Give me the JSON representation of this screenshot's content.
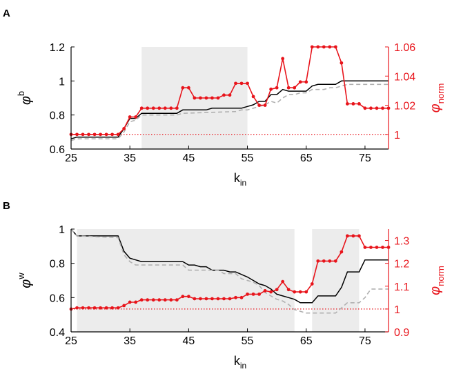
{
  "chart_data": [
    {
      "panel": "A",
      "type": "line",
      "xlabel": "k",
      "xlabel_sub": "in",
      "ylabel_left": "φ",
      "ylabel_left_sup": "b",
      "ylabel_right": "φ",
      "ylabel_right_sub": "norm",
      "xlim": [
        25,
        79
      ],
      "xticks": [
        25,
        35,
        45,
        55,
        65,
        75
      ],
      "ylim_left": [
        0.6,
        1.2
      ],
      "yticks_left": [
        0.6,
        0.8,
        1,
        1.2
      ],
      "yticklabels_left": [
        "0.6",
        "0.8",
        "1",
        "1.2"
      ],
      "ylim_right": [
        0.99,
        1.06
      ],
      "yticks_right": [
        1,
        1.02,
        1.04,
        1.06
      ],
      "yticklabels_right": [
        "1",
        "1.02",
        "1.04",
        "1.06"
      ],
      "shaded_ranges": [
        [
          37,
          55
        ]
      ],
      "reference_line_right": 1,
      "series": [
        {
          "style": "solid-black",
          "axis": "left",
          "x": [
            25,
            26,
            33,
            34,
            35,
            36,
            37,
            38,
            39,
            40,
            41,
            42,
            43,
            44,
            45,
            46,
            47,
            48,
            49,
            50,
            51,
            52,
            53,
            54,
            55,
            56,
            57,
            58,
            59,
            60,
            61,
            62,
            63,
            64,
            65,
            66,
            67,
            68,
            69,
            70,
            71,
            79
          ],
          "values": [
            0.66,
            0.67,
            0.67,
            0.72,
            0.78,
            0.78,
            0.81,
            0.81,
            0.81,
            0.81,
            0.81,
            0.81,
            0.81,
            0.83,
            0.83,
            0.83,
            0.83,
            0.83,
            0.84,
            0.84,
            0.84,
            0.84,
            0.84,
            0.84,
            0.85,
            0.86,
            0.88,
            0.88,
            0.92,
            0.92,
            0.95,
            0.94,
            0.94,
            0.94,
            0.94,
            0.97,
            0.98,
            0.98,
            0.98,
            0.98,
            1.0,
            1.0
          ]
        },
        {
          "style": "dashed-gray",
          "axis": "left",
          "x": [
            25,
            26,
            33,
            34,
            35,
            36,
            37,
            43,
            44,
            53,
            54,
            55,
            56,
            57,
            58,
            59,
            60,
            61,
            62,
            63,
            64,
            65,
            66,
            67,
            68,
            69,
            70,
            71,
            72,
            79
          ],
          "values": [
            0.65,
            0.66,
            0.66,
            0.7,
            0.76,
            0.77,
            0.8,
            0.8,
            0.81,
            0.82,
            0.83,
            0.83,
            0.84,
            0.85,
            0.86,
            0.88,
            0.87,
            0.9,
            0.92,
            0.92,
            0.93,
            0.93,
            0.95,
            0.95,
            0.95,
            0.96,
            0.96,
            0.97,
            0.98,
            0.98
          ]
        },
        {
          "style": "red-markers",
          "axis": "right",
          "x": [
            25,
            26,
            27,
            28,
            29,
            30,
            31,
            32,
            33,
            34,
            35,
            36,
            37,
            38,
            39,
            40,
            41,
            42,
            43,
            44,
            45,
            46,
            47,
            48,
            49,
            50,
            51,
            52,
            53,
            54,
            55,
            56,
            57,
            58,
            59,
            60,
            61,
            62,
            63,
            64,
            65,
            66,
            67,
            68,
            69,
            70,
            71,
            72,
            73,
            74,
            75,
            76,
            77,
            78,
            79
          ],
          "values": [
            1.0,
            1.0,
            1.0,
            1.0,
            1.0,
            1.0,
            1.0,
            1.0,
            1.0,
            1.004,
            1.012,
            1.012,
            1.018,
            1.018,
            1.018,
            1.018,
            1.018,
            1.018,
            1.018,
            1.032,
            1.032,
            1.025,
            1.025,
            1.025,
            1.025,
            1.025,
            1.027,
            1.027,
            1.035,
            1.035,
            1.035,
            1.026,
            1.02,
            1.02,
            1.031,
            1.032,
            1.052,
            1.032,
            1.032,
            1.036,
            1.036,
            1.06,
            1.06,
            1.06,
            1.06,
            1.06,
            1.049,
            1.021,
            1.021,
            1.021,
            1.018,
            1.018,
            1.018,
            1.018,
            1.018
          ]
        }
      ]
    },
    {
      "panel": "B",
      "type": "line",
      "xlabel": "k",
      "xlabel_sub": "in",
      "ylabel_left": "φ",
      "ylabel_left_sup": "w",
      "ylabel_right": "φ",
      "ylabel_right_sub": "norm",
      "xlim": [
        25,
        79
      ],
      "xticks": [
        25,
        35,
        45,
        55,
        65,
        75
      ],
      "ylim_left": [
        0.4,
        1.0
      ],
      "yticks_left": [
        0.4,
        0.6,
        0.8,
        1
      ],
      "yticklabels_left": [
        "0.4",
        "0.6",
        "0.8",
        "1"
      ],
      "ylim_right": [
        0.9,
        1.35
      ],
      "yticks_right": [
        0.9,
        1,
        1.1,
        1.2,
        1.3
      ],
      "yticklabels_right": [
        "0.9",
        "1",
        "1.1",
        "1.2",
        "1.3"
      ],
      "shaded_ranges": [
        [
          26,
          63
        ],
        [
          66,
          74
        ]
      ],
      "reference_line_right": 1,
      "series": [
        {
          "style": "solid-black",
          "axis": "left",
          "x": [
            25,
            26,
            33,
            34,
            35,
            36,
            37,
            44,
            45,
            46,
            47,
            48,
            49,
            51,
            52,
            53,
            55,
            56,
            57,
            58,
            59,
            60,
            61,
            62,
            63,
            64,
            66,
            67,
            70,
            71,
            72,
            74,
            75,
            79
          ],
          "values": [
            1.0,
            0.96,
            0.96,
            0.87,
            0.83,
            0.82,
            0.81,
            0.81,
            0.79,
            0.79,
            0.78,
            0.78,
            0.76,
            0.76,
            0.75,
            0.75,
            0.72,
            0.7,
            0.68,
            0.67,
            0.65,
            0.62,
            0.61,
            0.6,
            0.59,
            0.57,
            0.57,
            0.61,
            0.61,
            0.66,
            0.75,
            0.75,
            0.82,
            0.82
          ]
        },
        {
          "style": "dashed-gray",
          "axis": "left",
          "x": [
            25,
            26,
            33,
            34,
            35,
            36,
            44,
            45,
            50,
            51,
            53,
            54,
            56,
            57,
            58,
            59,
            60,
            61,
            62,
            63,
            64,
            65,
            67,
            68,
            70,
            71,
            72,
            74,
            75,
            76,
            79
          ],
          "values": [
            1.0,
            0.96,
            0.95,
            0.85,
            0.81,
            0.79,
            0.79,
            0.76,
            0.76,
            0.74,
            0.74,
            0.71,
            0.69,
            0.67,
            0.63,
            0.61,
            0.59,
            0.58,
            0.56,
            0.53,
            0.52,
            0.51,
            0.51,
            0.51,
            0.51,
            0.54,
            0.57,
            0.57,
            0.6,
            0.65,
            0.65
          ]
        },
        {
          "style": "red-markers",
          "axis": "right",
          "x": [
            25,
            26,
            27,
            28,
            29,
            30,
            31,
            32,
            33,
            34,
            35,
            36,
            37,
            38,
            39,
            40,
            41,
            42,
            43,
            44,
            45,
            46,
            47,
            48,
            49,
            50,
            51,
            52,
            53,
            54,
            55,
            56,
            57,
            58,
            59,
            60,
            61,
            62,
            63,
            64,
            65,
            66,
            67,
            68,
            69,
            70,
            71,
            72,
            73,
            74,
            75,
            76,
            77,
            78,
            79
          ],
          "values": [
            1.0,
            1.005,
            1.005,
            1.005,
            1.005,
            1.005,
            1.005,
            1.005,
            1.005,
            1.015,
            1.03,
            1.03,
            1.04,
            1.04,
            1.04,
            1.04,
            1.04,
            1.04,
            1.04,
            1.055,
            1.055,
            1.045,
            1.045,
            1.045,
            1.045,
            1.045,
            1.045,
            1.045,
            1.05,
            1.05,
            1.065,
            1.065,
            1.065,
            1.08,
            1.075,
            1.085,
            1.12,
            1.085,
            1.075,
            1.075,
            1.075,
            1.11,
            1.21,
            1.21,
            1.21,
            1.21,
            1.25,
            1.32,
            1.32,
            1.32,
            1.27,
            1.27,
            1.27,
            1.27,
            1.27
          ]
        }
      ]
    }
  ],
  "colors": {
    "axis_black": "#000000",
    "accent_red": "#e8141b",
    "dashed_gray": "#b0b0b0",
    "shade": "#ececec"
  }
}
